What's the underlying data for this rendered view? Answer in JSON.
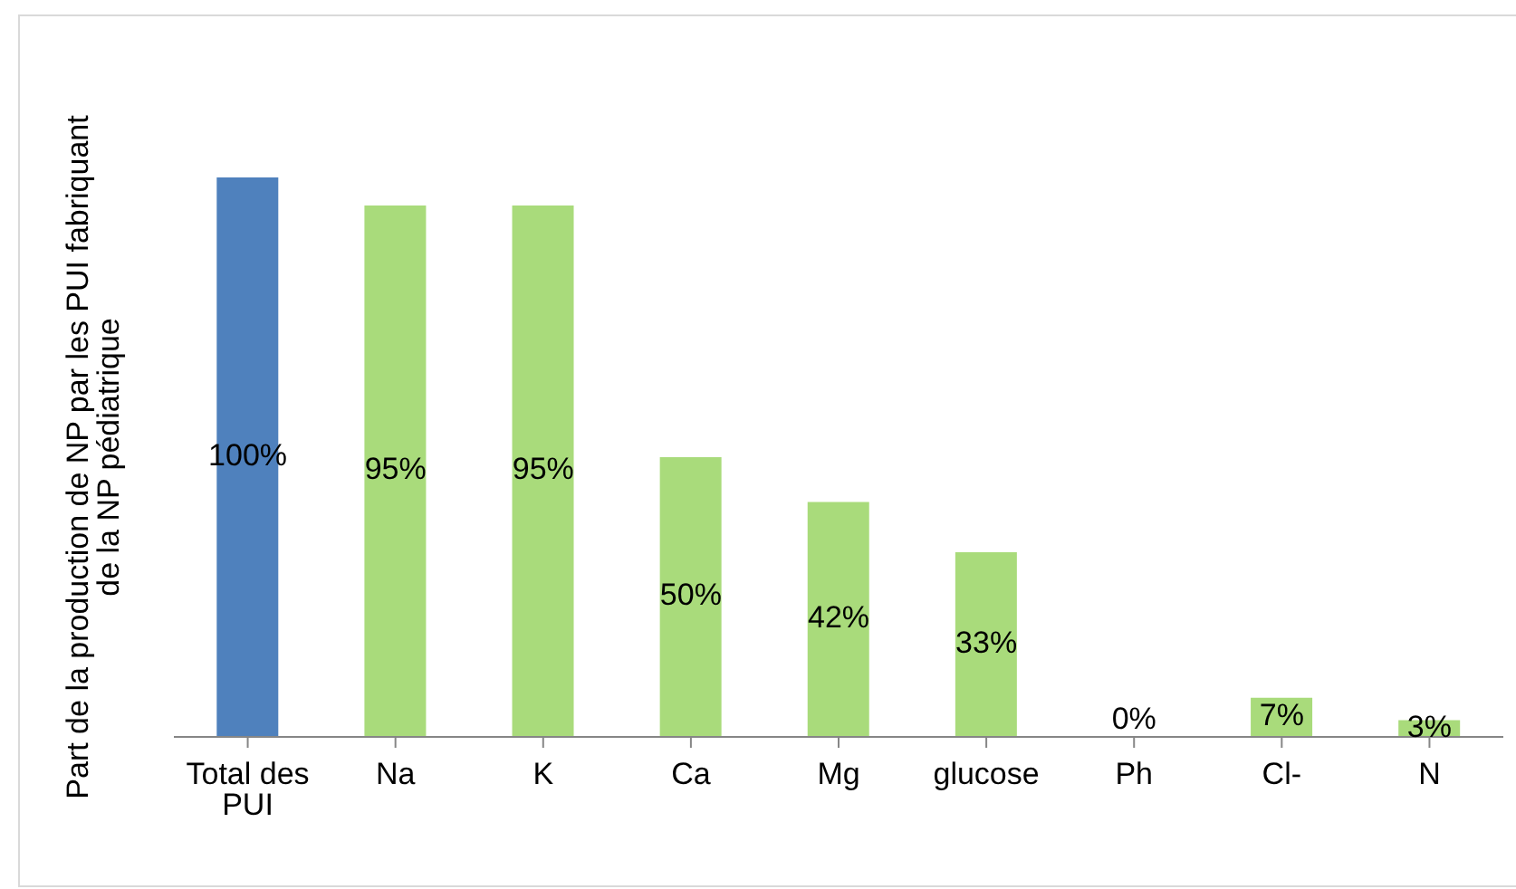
{
  "chart_data": {
    "type": "bar",
    "ylabel": "Part de la production de NP par les PUI fabriquant de la NP pédiatrique",
    "categories": [
      "Total des PUI",
      "Na",
      "K",
      "Ca",
      "Mg",
      "glucose",
      "Ph",
      "Cl-",
      "N"
    ],
    "values": [
      100,
      95,
      95,
      50,
      42,
      33,
      0,
      7,
      3
    ],
    "colors": [
      "#4f81bd",
      "#a9db7b",
      "#a9db7b",
      "#a9db7b",
      "#a9db7b",
      "#a9db7b",
      "#a9db7b",
      "#a9db7b",
      "#a9db7b"
    ],
    "value_labels": [
      "100%",
      "95%",
      "95%",
      "50%",
      "42%",
      "33%",
      "0%",
      "7%",
      "3%"
    ],
    "grid": false,
    "legend": false
  }
}
